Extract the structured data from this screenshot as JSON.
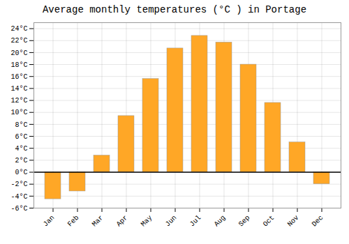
{
  "chart_data": {
    "type": "bar",
    "title": "Average monthly temperatures (°C ) in Portage",
    "categories": [
      "Jan",
      "Feb",
      "Mar",
      "Apr",
      "May",
      "Jun",
      "Jul",
      "Aug",
      "Sep",
      "Oct",
      "Nov",
      "Dec"
    ],
    "values": [
      -4.5,
      -3.2,
      2.8,
      9.4,
      15.6,
      20.7,
      22.8,
      21.7,
      18.0,
      11.6,
      5.0,
      -2.0
    ],
    "color": "#FFA726",
    "ylim": [
      -6,
      25
    ],
    "yticks": [
      {
        "value": -6,
        "label": "-6°C"
      },
      {
        "value": -4,
        "label": "-4°C"
      },
      {
        "value": -2,
        "label": "-2°C"
      },
      {
        "value": 0,
        "label": "0°C"
      },
      {
        "value": 2,
        "label": "2°C"
      },
      {
        "value": 4,
        "label": "4°C"
      },
      {
        "value": 6,
        "label": "6°C"
      },
      {
        "value": 8,
        "label": "8°C"
      },
      {
        "value": 10,
        "label": "10°C"
      },
      {
        "value": 12,
        "label": "12°C"
      },
      {
        "value": 14,
        "label": "14°C"
      },
      {
        "value": 16,
        "label": "16°C"
      },
      {
        "value": 18,
        "label": "18°C"
      },
      {
        "value": 20,
        "label": "20°C"
      },
      {
        "value": 22,
        "label": "22°C"
      },
      {
        "value": 24,
        "label": "24°C"
      }
    ],
    "grid": true
  }
}
